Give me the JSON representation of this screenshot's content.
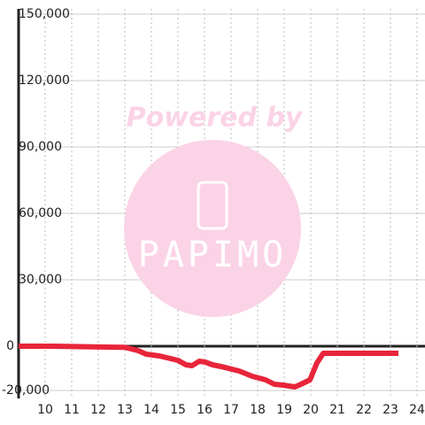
{
  "chart_data": {
    "type": "line",
    "x": [
      9.0,
      10.3,
      12.3,
      13.0,
      13.5,
      13.8,
      14.3,
      15.0,
      15.3,
      15.53,
      15.8,
      16.03,
      16.3,
      16.63,
      17.3,
      17.8,
      18.3,
      18.63,
      18.97,
      19.4,
      19.63,
      19.97,
      20.23,
      20.47,
      20.97,
      23.3
    ],
    "series": [
      {
        "color": "#e8253a",
        "values": [
          0,
          0,
          -400,
          -500,
          -2000,
          -3600,
          -4400,
          -6400,
          -8400,
          -8800,
          -6800,
          -7200,
          -8400,
          -9200,
          -11200,
          -13600,
          -15200,
          -17200,
          -17600,
          -18400,
          -17200,
          -15200,
          -7600,
          -3200,
          -3200,
          -3200
        ]
      }
    ],
    "xlim": [
      9,
      24.3
    ],
    "xticks": [
      10,
      11,
      12,
      13,
      14,
      15,
      16,
      17,
      18,
      19,
      20,
      21,
      22,
      23,
      24
    ],
    "ylim": [
      -20000,
      150000
    ],
    "yticks": [
      {
        "value": -20000,
        "label": "-20,000"
      },
      0,
      {
        "value": 30000,
        "label": "30,000"
      },
      {
        "value": 60000,
        "label": "60,000"
      },
      {
        "value": 90000,
        "label": "90,000"
      },
      {
        "value": 120000,
        "label": "120,000"
      },
      {
        "value": 150000,
        "label": "150,000"
      }
    ],
    "grid": true,
    "watermark": {
      "top": "Powered by",
      "brand": "PAPIMO"
    }
  }
}
